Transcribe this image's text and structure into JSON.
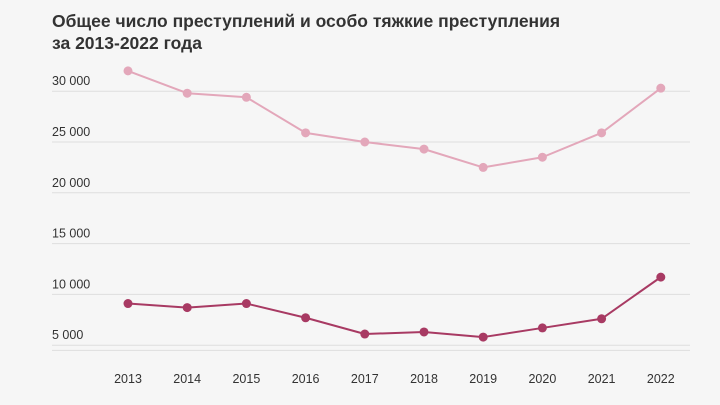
{
  "chart_data": {
    "type": "line",
    "title": "Общее число преступлений и особо тяжкие преступления за 2013-2022 года",
    "xlabel": "",
    "ylabel": "",
    "x": [
      "2013",
      "2014",
      "2015",
      "2016",
      "2017",
      "2018",
      "2019",
      "2020",
      "2021",
      "2022"
    ],
    "y_ticks": [
      {
        "value": 5000,
        "label": "5 000"
      },
      {
        "value": 10000,
        "label": "10 000"
      },
      {
        "value": 15000,
        "label": "15 000"
      },
      {
        "value": 20000,
        "label": "20 000"
      },
      {
        "value": 25000,
        "label": "25 000"
      },
      {
        "value": 30000,
        "label": "30 000"
      }
    ],
    "ylim": [
      4000,
      33000
    ],
    "grid": true,
    "legend": "none",
    "series": [
      {
        "name": "Общее число преступлений",
        "color": "#e3a7ba",
        "values": [
          32000,
          29800,
          29400,
          25900,
          25000,
          24300,
          22500,
          23500,
          25900,
          30300
        ]
      },
      {
        "name": "Особо тяжкие преступления",
        "color": "#a83a63",
        "values": [
          9100,
          8700,
          9100,
          7700,
          6100,
          6300,
          5800,
          6700,
          7600,
          11700
        ]
      }
    ]
  }
}
